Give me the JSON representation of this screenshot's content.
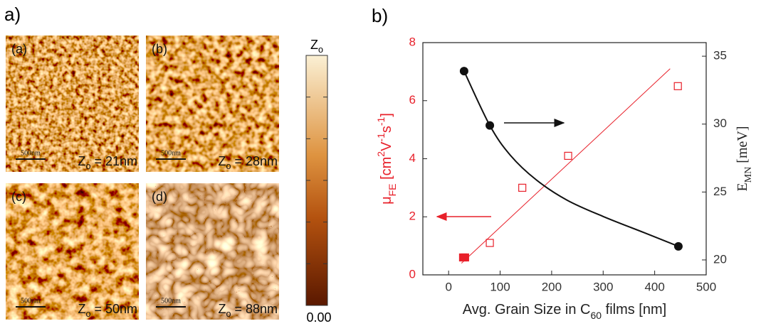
{
  "panel_a": {
    "label": "a)",
    "images": [
      {
        "tag": "(a)",
        "scale": "500nm",
        "z": [
          {
            "text": "Z"
          },
          {
            "text": "o",
            "sub": true
          },
          {
            "text": " = 21nm"
          }
        ]
      },
      {
        "tag": "(b)",
        "scale": "500nm",
        "z": [
          {
            "text": "Z"
          },
          {
            "text": "o",
            "sub": true
          },
          {
            "text": " = 28nm"
          }
        ]
      },
      {
        "tag": "(c)",
        "scale": "500nm",
        "z": [
          {
            "text": "Z"
          },
          {
            "text": "o",
            "sub": true
          },
          {
            "text": " = 50nm"
          }
        ]
      },
      {
        "tag": "(d)",
        "scale": "500nm",
        "z": [
          {
            "text": "Z"
          },
          {
            "text": "o",
            "sub": true
          },
          {
            "text": " = 88nm"
          }
        ]
      }
    ],
    "colorbar": {
      "label": [
        {
          "text": "Z"
        },
        {
          "text": "o",
          "sub": true
        }
      ],
      "min_label": "0.00"
    }
  },
  "chart_data": {
    "type": "scatter",
    "panel_label": "b)",
    "xlabel": [
      {
        "text": "Avg. Grain Size in C"
      },
      {
        "text": "60",
        "sub": true
      },
      {
        "text": " films [nm]"
      }
    ],
    "ylabel": [
      {
        "text": "μ"
      },
      {
        "text": "FE",
        "sub": true
      },
      {
        "text": "  [cm"
      },
      {
        "text": "2",
        "sup": true
      },
      {
        "text": "V"
      },
      {
        "text": "-1",
        "sup": true
      },
      {
        "text": "s"
      },
      {
        "text": "-1",
        "sup": true
      },
      {
        "text": "]"
      }
    ],
    "y2label": [
      {
        "text": "E"
      },
      {
        "text": "MN",
        "sub": true
      },
      {
        "text": " [meV]"
      }
    ],
    "xlim": [
      -50,
      500
    ],
    "xticks": [
      0,
      100,
      200,
      300,
      400,
      500
    ],
    "ylim": [
      0,
      8
    ],
    "yticks": [
      0,
      2,
      4,
      6,
      8
    ],
    "y2lim": [
      18.9,
      36.0
    ],
    "y2ticks": [
      20,
      25,
      30,
      35
    ],
    "ycolor": "#e8202a",
    "y2color": "#222222",
    "series": [
      {
        "color": "#e8202a",
        "marker": "filled-square",
        "x": [
          28,
          32
        ],
        "values": [
          0.6,
          0.6
        ]
      },
      {
        "color": "#e8202a",
        "marker": "open-square",
        "x": [
          80,
          143,
          232,
          445
        ],
        "values": [
          1.1,
          3.0,
          4.1,
          6.5
        ]
      },
      {
        "color": "#e8202a",
        "marker": "line",
        "x": [
          25,
          430
        ],
        "values": [
          0.4,
          7.1
        ]
      },
      {
        "color": "#111111",
        "marker": "circle",
        "axis": "y2",
        "x": [
          30,
          80,
          446
        ],
        "values": [
          33.9,
          29.9,
          21.0
        ]
      },
      {
        "color": "#111111",
        "marker": "curve",
        "axis": "y2",
        "x": [
          30,
          80,
          120,
          170,
          230,
          300,
          380,
          446
        ],
        "values": [
          33.9,
          29.9,
          27.7,
          25.9,
          24.4,
          23.2,
          22.0,
          21.0
        ]
      }
    ]
  }
}
